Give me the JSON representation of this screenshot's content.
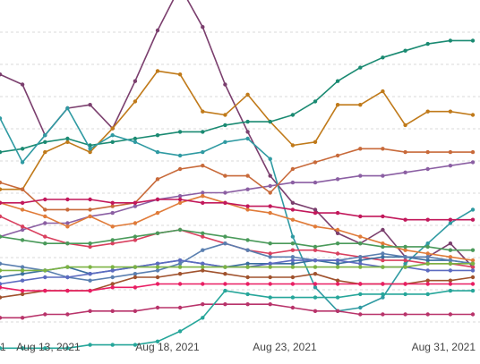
{
  "chart_data": {
    "type": "line",
    "x": [
      "2021-08-11",
      "2021-08-12",
      "2021-08-13",
      "2021-08-14",
      "2021-08-15",
      "2021-08-16",
      "2021-08-17",
      "2021-08-18",
      "2021-08-19",
      "2021-08-20",
      "2021-08-21",
      "2021-08-22",
      "2021-08-23",
      "2021-08-24",
      "2021-08-25",
      "2021-08-26",
      "2021-08-27",
      "2021-08-28",
      "2021-08-29",
      "2021-08-30",
      "2021-08-31",
      "2021-09-01"
    ],
    "x_tick_labels": [
      "1",
      "Aug 13, 2021",
      "Aug 18, 2021",
      "Aug 23, 2021",
      "Aug 31, 2021"
    ],
    "xlabel": "",
    "ylabel": "",
    "ylim": [
      0,
      100
    ],
    "grid": true,
    "legend": "none",
    "series": [
      {
        "color": "#7b3f6e",
        "values": [
          78,
          75,
          60,
          68,
          69,
          62,
          76,
          91,
          104,
          92,
          75,
          61,
          48,
          40,
          38,
          31,
          28,
          32,
          24,
          24,
          28,
          21
        ]
      },
      {
        "color": "#c07a1a",
        "values": [
          44,
          44,
          55,
          58,
          55,
          62,
          70,
          79,
          78,
          67,
          66,
          72,
          64,
          57,
          58,
          69,
          69,
          73,
          63,
          67,
          67,
          66
        ]
      },
      {
        "color": "#1a8a72",
        "values": [
          55,
          56,
          58,
          59,
          57,
          58,
          59,
          60,
          61,
          61,
          63,
          64,
          64,
          66,
          70,
          76,
          80,
          83,
          85,
          87,
          88,
          88
        ]
      },
      {
        "color": "#2f9aa2",
        "values": [
          65,
          52,
          60,
          68,
          56,
          60,
          58,
          55,
          54,
          55,
          58,
          59,
          53,
          30,
          15,
          8,
          9,
          12,
          22,
          28,
          34,
          38
        ]
      },
      {
        "color": "#8b5fa3",
        "values": [
          30,
          32,
          34,
          34,
          36,
          37,
          39,
          41,
          42,
          43,
          43,
          44,
          45,
          46,
          46,
          47,
          48,
          48,
          49,
          50,
          51,
          52
        ]
      },
      {
        "color": "#c86a3a",
        "values": [
          46,
          44,
          38,
          38,
          38,
          39,
          40,
          47,
          50,
          51,
          48,
          48,
          43,
          50,
          52,
          54,
          56,
          56,
          55,
          55,
          55,
          55
        ]
      },
      {
        "color": "#d9405f",
        "values": [
          36,
          33,
          30,
          28,
          27,
          28,
          29,
          31,
          32,
          30,
          28,
          26,
          25,
          26,
          26,
          25,
          24,
          23,
          23,
          22,
          22,
          21
        ]
      },
      {
        "color": "#e07b39",
        "values": [
          40,
          38,
          36,
          33,
          36,
          33,
          34,
          37,
          40,
          42,
          40,
          38,
          37,
          35,
          33,
          32,
          30,
          28,
          26,
          25,
          24,
          23
        ]
      },
      {
        "color": "#3b6fa0",
        "values": [
          18,
          19,
          20,
          21,
          19,
          20,
          21,
          22,
          23,
          22,
          21,
          22,
          22,
          22,
          23,
          22,
          23,
          24,
          24,
          23,
          23,
          22
        ]
      },
      {
        "color": "#5a7fb0",
        "values": [
          22,
          21,
          20,
          18,
          17,
          18,
          19,
          20,
          22,
          26,
          28,
          26,
          24,
          24,
          23,
          23,
          24,
          25,
          24,
          24,
          23,
          22
        ]
      },
      {
        "color": "#4a9a5a",
        "values": [
          30,
          29,
          28,
          28,
          28,
          29,
          30,
          31,
          32,
          31,
          30,
          29,
          28,
          28,
          27,
          28,
          28,
          27,
          27,
          27,
          26,
          26
        ]
      },
      {
        "color": "#a0522d",
        "values": [
          12,
          13,
          14,
          14,
          14,
          16,
          18,
          18,
          19,
          20,
          19,
          18,
          18,
          18,
          19,
          17,
          16,
          16,
          16,
          17,
          17,
          18
        ]
      },
      {
        "color": "#b8336a",
        "values": [
          6,
          6,
          7,
          7,
          8,
          8,
          8,
          9,
          9,
          10,
          10,
          10,
          10,
          9,
          8,
          8,
          7,
          7,
          7,
          7,
          7,
          7
        ]
      },
      {
        "color": "#c2185b",
        "values": [
          40,
          40,
          41,
          41,
          41,
          40,
          40,
          41,
          41,
          40,
          40,
          39,
          39,
          38,
          37,
          37,
          36,
          36,
          35,
          35,
          35,
          35
        ]
      },
      {
        "color": "#26a69a",
        "values": [
          -3,
          -3,
          -3,
          -3,
          -2,
          -2,
          -2,
          -1,
          2,
          6,
          14,
          13,
          12,
          12,
          12,
          12,
          13,
          13,
          13,
          13,
          14,
          14
        ]
      },
      {
        "color": "#5c6bc0",
        "values": [
          16,
          17,
          18,
          18,
          19,
          20,
          21,
          22,
          23,
          22,
          21,
          21,
          22,
          23,
          23,
          23,
          22,
          21,
          21,
          20,
          20,
          20
        ]
      },
      {
        "color": "#e91e63",
        "values": [
          15,
          14,
          14,
          14,
          14,
          15,
          15,
          16,
          16,
          16,
          16,
          16,
          16,
          16,
          16,
          16,
          16,
          16,
          16,
          16,
          16,
          16
        ]
      },
      {
        "color": "#7cb342",
        "values": [
          20,
          20,
          20,
          21,
          21,
          21,
          21,
          21,
          21,
          21,
          21,
          21,
          21,
          21,
          21,
          21,
          21,
          21,
          21,
          22,
          22,
          22
        ]
      }
    ]
  }
}
